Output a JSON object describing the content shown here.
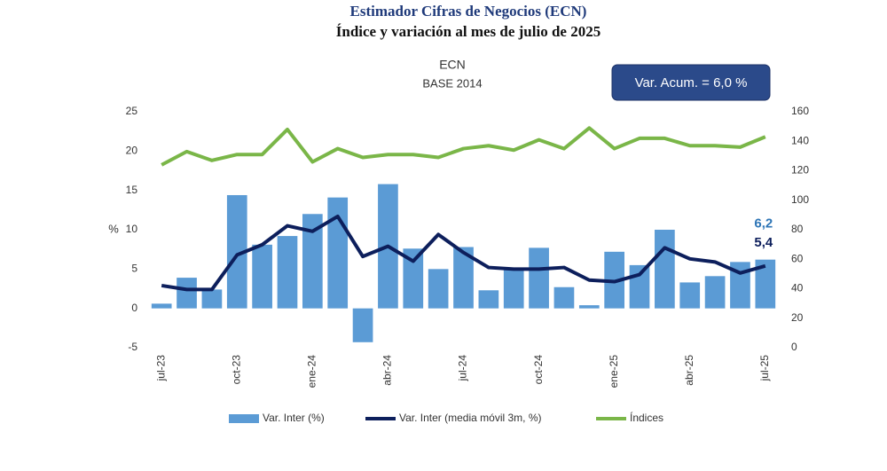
{
  "chart_data": {
    "type": "bar_line",
    "title": "Estimador Cifras de Negocios (ECN)",
    "subtitle": "Índice y variación al mes de julio de 2025",
    "inner_title": "ECN",
    "inner_subtitle": "BASE 2014",
    "annotation": "Var. Acum. = 6,0 %",
    "ylabel": "%",
    "categories": [
      "jul-23",
      null,
      null,
      "oct-23",
      null,
      null,
      "ene-24",
      null,
      null,
      "abr-24",
      null,
      null,
      "jul-24",
      null,
      null,
      "oct-24",
      null,
      null,
      "ene-25",
      null,
      null,
      "abr-25",
      null,
      null,
      "jul-25"
    ],
    "ylim": [
      -5,
      25
    ],
    "yticks": [
      -5,
      0,
      5,
      10,
      15,
      20,
      25
    ],
    "y2lim": [
      0,
      160
    ],
    "y2ticks": [
      0,
      20,
      40,
      60,
      80,
      100,
      120,
      140,
      160
    ],
    "series": [
      {
        "name": "Var. Inter (%)",
        "kind": "bar",
        "color": "#5b9bd5",
        "values": [
          0.6,
          3.9,
          2.4,
          14.4,
          8.1,
          9.2,
          12.0,
          14.1,
          -4.3,
          15.8,
          7.6,
          5.0,
          7.8,
          2.3,
          4.9,
          7.7,
          2.7,
          0.4,
          7.2,
          5.5,
          10.0,
          3.3,
          4.1,
          5.9,
          6.2
        ],
        "value_labels": [
          null,
          null,
          null,
          null,
          null,
          null,
          null,
          null,
          null,
          null,
          null,
          null,
          null,
          null,
          null,
          null,
          null,
          null,
          null,
          null,
          null,
          null,
          null,
          null,
          "6,2"
        ]
      },
      {
        "name": "Var. Inter (media móvil 3m, %)",
        "kind": "line",
        "color": "#0d1f5c",
        "values": [
          2.9,
          2.4,
          2.4,
          6.8,
          8.1,
          10.5,
          9.8,
          11.7,
          6.6,
          7.9,
          6.0,
          9.4,
          7.1,
          5.2,
          5.0,
          5.0,
          5.2,
          3.6,
          3.4,
          4.3,
          7.7,
          6.3,
          5.9,
          4.5,
          5.4
        ],
        "value_labels": [
          null,
          null,
          null,
          null,
          null,
          null,
          null,
          null,
          null,
          null,
          null,
          null,
          null,
          null,
          null,
          null,
          null,
          null,
          null,
          null,
          null,
          null,
          null,
          null,
          "5,4"
        ]
      },
      {
        "name": "Índices",
        "kind": "line",
        "axis": "y2",
        "color": "#7ab648",
        "values": [
          124,
          133,
          127,
          131,
          131,
          148,
          126,
          135,
          129,
          131,
          131,
          129,
          135,
          137,
          134,
          141,
          135,
          149,
          135,
          142,
          142,
          137,
          137,
          136,
          143
        ]
      }
    ]
  }
}
